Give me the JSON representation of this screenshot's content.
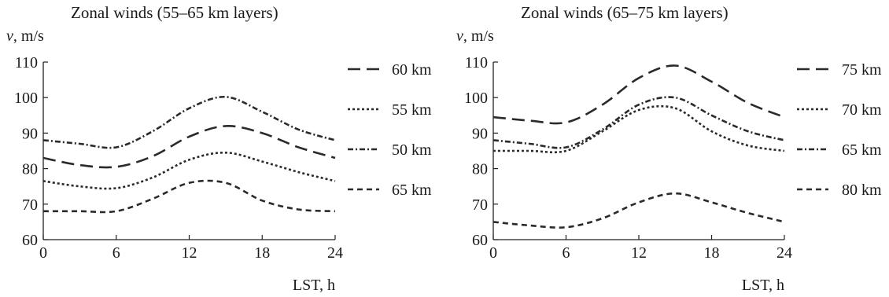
{
  "chart_data": [
    {
      "type": "line",
      "title": "Zonal winds (55–65 km layers)",
      "ylabel_var": "v",
      "ylabel_unit": ", m/s",
      "xlabel": "LST, h",
      "xlim": [
        0,
        24
      ],
      "ylim": [
        60,
        110
      ],
      "xticks": [
        0,
        6,
        12,
        18,
        24
      ],
      "yticks": [
        60,
        70,
        80,
        90,
        100,
        110
      ],
      "grid": false,
      "legend_position": "right",
      "series": [
        {
          "name": "60 km",
          "dash": "long-dash",
          "x": [
            0,
            3,
            6,
            9,
            12,
            15,
            18,
            21,
            24
          ],
          "y": [
            83,
            81,
            80.5,
            83.5,
            89,
            92,
            90,
            86,
            83
          ]
        },
        {
          "name": "55 km",
          "dash": "dotted",
          "x": [
            0,
            3,
            6,
            9,
            12,
            15,
            18,
            21,
            24
          ],
          "y": [
            76.5,
            75,
            74.5,
            77.5,
            82.5,
            84.5,
            82,
            79,
            76.5
          ]
        },
        {
          "name": "50 km",
          "dash": "dash-dot",
          "x": [
            0,
            3,
            6,
            9,
            12,
            15,
            18,
            21,
            24
          ],
          "y": [
            88,
            87,
            86,
            90.5,
            97,
            100.2,
            96,
            91,
            88
          ]
        },
        {
          "name": "65 km",
          "dash": "short-dash",
          "x": [
            0,
            3,
            6,
            9,
            12,
            15,
            18,
            21,
            24
          ],
          "y": [
            68,
            68,
            68,
            71.5,
            76,
            76,
            71,
            68.5,
            68
          ]
        }
      ]
    },
    {
      "type": "line",
      "title": "Zonal winds (65–75 km layers)",
      "ylabel_var": "v",
      "ylabel_unit": ", m/s",
      "xlabel": "LST, h",
      "xlim": [
        0,
        24
      ],
      "ylim": [
        60,
        110
      ],
      "xticks": [
        0,
        6,
        12,
        18,
        24
      ],
      "yticks": [
        60,
        70,
        80,
        90,
        100,
        110
      ],
      "grid": false,
      "legend_position": "right",
      "series": [
        {
          "name": "75 km",
          "dash": "long-dash",
          "x": [
            0,
            3,
            6,
            9,
            12,
            15,
            18,
            21,
            24
          ],
          "y": [
            94.5,
            93.5,
            93,
            98,
            105.5,
            109,
            104.5,
            98.5,
            94.5
          ]
        },
        {
          "name": "70 km",
          "dash": "dotted",
          "x": [
            0,
            3,
            6,
            9,
            12,
            15,
            18,
            21,
            24
          ],
          "y": [
            85,
            85,
            85,
            90.5,
            96.5,
            97,
            90.5,
            86.5,
            85
          ]
        },
        {
          "name": "65 km",
          "dash": "dash-dot",
          "x": [
            0,
            3,
            6,
            9,
            12,
            15,
            18,
            21,
            24
          ],
          "y": [
            88,
            87,
            86,
            91,
            98,
            100,
            95,
            90.5,
            88
          ]
        },
        {
          "name": "80 km",
          "dash": "short-dash",
          "x": [
            0,
            3,
            6,
            9,
            12,
            15,
            18,
            21,
            24
          ],
          "y": [
            65,
            64,
            63.5,
            66,
            70.5,
            73,
            70.5,
            67.5,
            65
          ]
        }
      ]
    }
  ]
}
